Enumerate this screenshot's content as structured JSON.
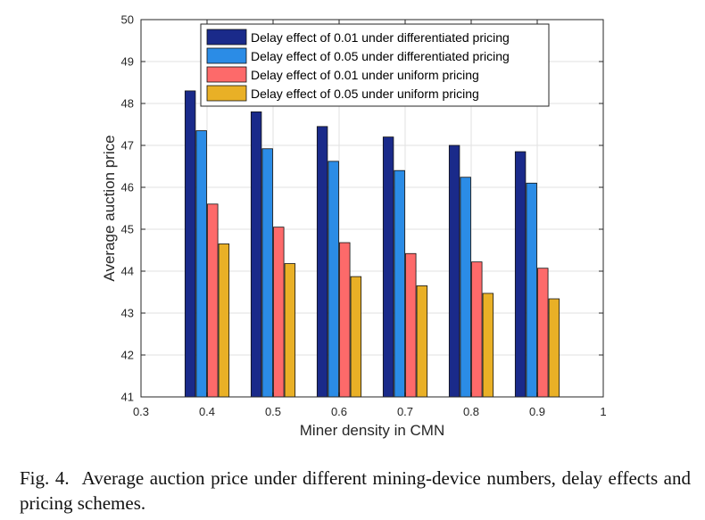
{
  "chart_data": {
    "type": "bar",
    "xlabel": "Miner density in CMN",
    "ylabel": "Average auction price",
    "xlim": [
      0.3,
      1.0
    ],
    "ylim": [
      41,
      50
    ],
    "x_ticks": [
      "0.3",
      "0.4",
      "0.5",
      "0.6",
      "0.7",
      "0.8",
      "0.9",
      "1"
    ],
    "y_ticks": [
      "41",
      "42",
      "43",
      "44",
      "45",
      "46",
      "47",
      "48",
      "49",
      "50"
    ],
    "categories": [
      "0.4",
      "0.5",
      "0.6",
      "0.7",
      "0.8",
      "0.9"
    ],
    "category_positions": [
      0.4,
      0.5,
      0.6,
      0.7,
      0.8,
      0.9
    ],
    "grid": true,
    "legend_position": "top",
    "series": [
      {
        "name": "Delay effect of 0.01 under differentiated pricing",
        "color": "#1a2a8a",
        "values": [
          48.3,
          47.8,
          47.45,
          47.2,
          47.0,
          46.85
        ]
      },
      {
        "name": "Delay effect of 0.05 under differentiated pricing",
        "color": "#2b8ce6",
        "values": [
          47.35,
          46.92,
          46.62,
          46.4,
          46.24,
          46.1
        ]
      },
      {
        "name": "Delay effect of 0.01 under uniform pricing",
        "color": "#fd6a6a",
        "values": [
          45.6,
          45.05,
          44.68,
          44.42,
          44.22,
          44.07
        ]
      },
      {
        "name": "Delay effect of 0.05 under uniform pricing",
        "color": "#e9b026",
        "values": [
          44.65,
          44.18,
          43.87,
          43.65,
          43.47,
          43.34
        ]
      }
    ]
  },
  "caption": {
    "label": "Fig. 4.",
    "text": "Average auction price under different mining-device numbers, delay effects and pricing schemes."
  }
}
